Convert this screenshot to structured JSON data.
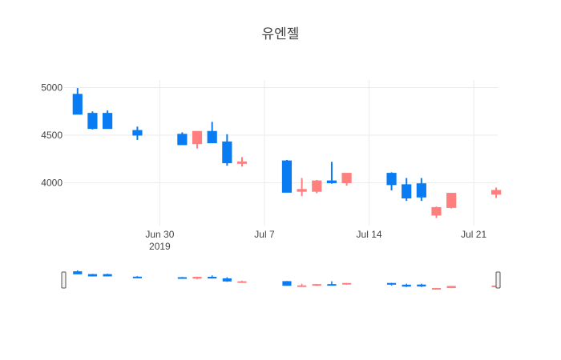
{
  "chart_data": {
    "type": "candlestick",
    "title": "유엔젤",
    "x_labels": [
      {
        "date": "2019-06-30",
        "text": "Jun 30",
        "sub": "2019"
      },
      {
        "date": "2019-07-07",
        "text": "Jul 7"
      },
      {
        "date": "2019-07-14",
        "text": "Jul 14"
      },
      {
        "date": "2019-07-21",
        "text": "Jul 21"
      }
    ],
    "x_range": [
      "2019-06-23",
      "2019-07-22"
    ],
    "y_ticks": [
      "4000",
      "4500",
      "5000"
    ],
    "ylim": [
      3550,
      5080
    ],
    "grid": true,
    "rangeslider": true,
    "colors": {
      "increasing": "#ff7f7f",
      "decreasing": "#0a7cf3"
    },
    "candles": [
      {
        "date": "2019-06-24",
        "open": 4930,
        "high": 4995,
        "low": 4720,
        "close": 4720
      },
      {
        "date": "2019-06-25",
        "open": 4730,
        "high": 4750,
        "low": 4560,
        "close": 4570
      },
      {
        "date": "2019-06-26",
        "open": 4730,
        "high": 4760,
        "low": 4570,
        "close": 4570
      },
      {
        "date": "2019-06-28",
        "open": 4550,
        "high": 4590,
        "low": 4450,
        "close": 4500
      },
      {
        "date": "2019-07-01",
        "open": 4510,
        "high": 4530,
        "low": 4400,
        "close": 4400
      },
      {
        "date": "2019-07-02",
        "open": 4410,
        "high": 4540,
        "low": 4360,
        "close": 4540
      },
      {
        "date": "2019-07-03",
        "open": 4540,
        "high": 4640,
        "low": 4420,
        "close": 4420
      },
      {
        "date": "2019-07-04",
        "open": 4430,
        "high": 4510,
        "low": 4180,
        "close": 4210
      },
      {
        "date": "2019-07-05",
        "open": 4220,
        "high": 4270,
        "low": 4170,
        "close": 4220
      },
      {
        "date": "2019-07-08",
        "open": 4230,
        "high": 4240,
        "low": 3900,
        "close": 3900
      },
      {
        "date": "2019-07-09",
        "open": 3910,
        "high": 4050,
        "low": 3860,
        "close": 3930
      },
      {
        "date": "2019-07-10",
        "open": 3910,
        "high": 4030,
        "low": 3890,
        "close": 4020
      },
      {
        "date": "2019-07-11",
        "open": 4020,
        "high": 4220,
        "low": 3990,
        "close": 4000
      },
      {
        "date": "2019-07-12",
        "open": 4000,
        "high": 4100,
        "low": 3970,
        "close": 4100
      },
      {
        "date": "2019-07-15",
        "open": 4100,
        "high": 4110,
        "low": 3920,
        "close": 3980
      },
      {
        "date": "2019-07-16",
        "open": 3980,
        "high": 4050,
        "low": 3810,
        "close": 3840
      },
      {
        "date": "2019-07-17",
        "open": 3990,
        "high": 4050,
        "low": 3810,
        "close": 3850
      },
      {
        "date": "2019-07-18",
        "open": 3660,
        "high": 3750,
        "low": 3630,
        "close": 3740
      },
      {
        "date": "2019-07-19",
        "open": 3740,
        "high": 3890,
        "low": 3730,
        "close": 3890
      },
      {
        "date": "2019-07-22",
        "open": 3880,
        "high": 3950,
        "low": 3840,
        "close": 3920
      }
    ]
  }
}
